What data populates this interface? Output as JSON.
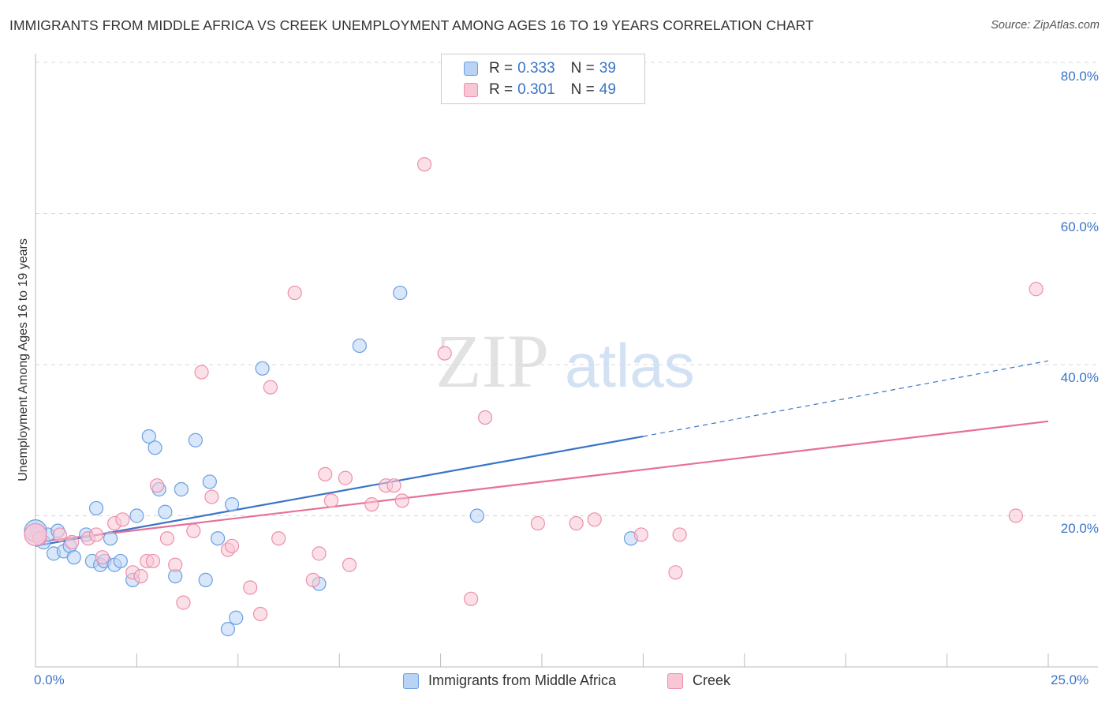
{
  "title": "IMMIGRANTS FROM MIDDLE AFRICA VS CREEK UNEMPLOYMENT AMONG AGES 16 TO 19 YEARS CORRELATION CHART",
  "source": "Source: ZipAtlas.com",
  "watermark": {
    "zip": "ZIP",
    "atlas": "atlas"
  },
  "legend": {
    "blue": {
      "r_label": "R = ",
      "r_value": "0.333",
      "n_label": "N = ",
      "n_value": "39"
    },
    "pink": {
      "r_label": "R = ",
      "r_value": "0.301",
      "n_label": "N = ",
      "n_value": "49"
    }
  },
  "colors": {
    "blue": "#5b93e0",
    "blue_line": "#3a74c7",
    "pink": "#f3a3ba",
    "pink_line": "#e76f98",
    "grid": "#d8d8d8",
    "axis_text": "#3a74c7"
  },
  "chart_data": {
    "type": "scatter",
    "title": "IMMIGRANTS FROM MIDDLE AFRICA VS CREEK UNEMPLOYMENT AMONG AGES 16 TO 19 YEARS CORRELATION CHART",
    "xlabel": "",
    "ylabel": "Unemployment Among Ages 16 to 19 years",
    "xlim": [
      0,
      25
    ],
    "ylim": [
      0,
      80
    ],
    "x_tick_labels": [
      "0.0%",
      "25.0%"
    ],
    "y_ticks": [
      20,
      40,
      60,
      80
    ],
    "y_tick_labels": [
      "20.0%",
      "40.0%",
      "60.0%",
      "80.0%"
    ],
    "series": [
      {
        "name": "Immigrants from Middle Africa",
        "color": "blue",
        "points": [
          [
            0.05,
            18.0
          ],
          [
            0.1,
            17.0
          ],
          [
            0.2,
            16.5
          ],
          [
            0.3,
            17.5
          ],
          [
            0.45,
            15.0
          ],
          [
            0.55,
            18.0
          ],
          [
            0.7,
            15.3
          ],
          [
            0.85,
            16.0
          ],
          [
            0.95,
            14.5
          ],
          [
            1.25,
            17.5
          ],
          [
            1.4,
            14.0
          ],
          [
            1.5,
            21.0
          ],
          [
            1.6,
            13.5
          ],
          [
            1.7,
            14.0
          ],
          [
            1.85,
            17.0
          ],
          [
            1.95,
            13.5
          ],
          [
            2.1,
            14.0
          ],
          [
            2.4,
            11.5
          ],
          [
            2.5,
            20.0
          ],
          [
            2.8,
            30.5
          ],
          [
            2.95,
            29.0
          ],
          [
            3.05,
            23.5
          ],
          [
            3.2,
            20.5
          ],
          [
            3.45,
            12.0
          ],
          [
            3.6,
            23.5
          ],
          [
            3.95,
            30.0
          ],
          [
            4.2,
            11.5
          ],
          [
            4.3,
            24.5
          ],
          [
            4.5,
            17.0
          ],
          [
            4.75,
            5.0
          ],
          [
            4.85,
            21.5
          ],
          [
            4.95,
            6.5
          ],
          [
            5.6,
            39.5
          ],
          [
            7.0,
            11.0
          ],
          [
            8.0,
            42.5
          ],
          [
            9.0,
            49.5
          ],
          [
            10.9,
            20.0
          ],
          [
            14.7,
            17.0
          ],
          [
            0.0,
            18.0
          ]
        ]
      },
      {
        "name": "Creek",
        "color": "pink",
        "points": [
          [
            0.1,
            17.0
          ],
          [
            0.6,
            17.5
          ],
          [
            1.3,
            17.0
          ],
          [
            1.5,
            17.5
          ],
          [
            1.65,
            14.5
          ],
          [
            1.95,
            19.0
          ],
          [
            2.15,
            19.5
          ],
          [
            2.4,
            12.5
          ],
          [
            2.6,
            12.0
          ],
          [
            2.75,
            14.0
          ],
          [
            3.0,
            24.0
          ],
          [
            3.25,
            17.0
          ],
          [
            3.45,
            13.5
          ],
          [
            3.65,
            8.5
          ],
          [
            3.9,
            18.0
          ],
          [
            4.1,
            39.0
          ],
          [
            4.35,
            22.5
          ],
          [
            4.75,
            15.5
          ],
          [
            4.85,
            16.0
          ],
          [
            5.3,
            10.5
          ],
          [
            5.55,
            7.0
          ],
          [
            5.8,
            37.0
          ],
          [
            6.4,
            49.5
          ],
          [
            6.85,
            11.5
          ],
          [
            7.0,
            15.0
          ],
          [
            7.15,
            25.5
          ],
          [
            7.3,
            22.0
          ],
          [
            7.65,
            25.0
          ],
          [
            7.75,
            13.5
          ],
          [
            8.3,
            21.5
          ],
          [
            8.65,
            24.0
          ],
          [
            8.85,
            24.0
          ],
          [
            9.05,
            22.0
          ],
          [
            9.6,
            66.5
          ],
          [
            10.1,
            41.5
          ],
          [
            10.75,
            9.0
          ],
          [
            11.1,
            33.0
          ],
          [
            12.4,
            19.0
          ],
          [
            13.35,
            19.0
          ],
          [
            13.8,
            19.5
          ],
          [
            14.95,
            17.5
          ],
          [
            15.8,
            12.5
          ],
          [
            15.9,
            17.5
          ],
          [
            24.2,
            20.0
          ],
          [
            24.7,
            50.0
          ],
          [
            0.0,
            17.5
          ],
          [
            2.9,
            14.0
          ],
          [
            0.9,
            16.5
          ],
          [
            6.0,
            17.0
          ]
        ]
      }
    ],
    "trendlines": [
      {
        "series": "Immigrants from Middle Africa",
        "solid": [
          [
            0,
            16.0
          ],
          [
            15.0,
            30.5
          ]
        ],
        "dashed": [
          [
            15.0,
            30.5
          ],
          [
            25.0,
            40.5
          ]
        ]
      },
      {
        "series": "Creek",
        "solid": [
          [
            0,
            16.5
          ],
          [
            25.0,
            32.5
          ]
        ]
      }
    ],
    "legend": [
      "Immigrants from Middle Africa",
      "Creek"
    ]
  }
}
